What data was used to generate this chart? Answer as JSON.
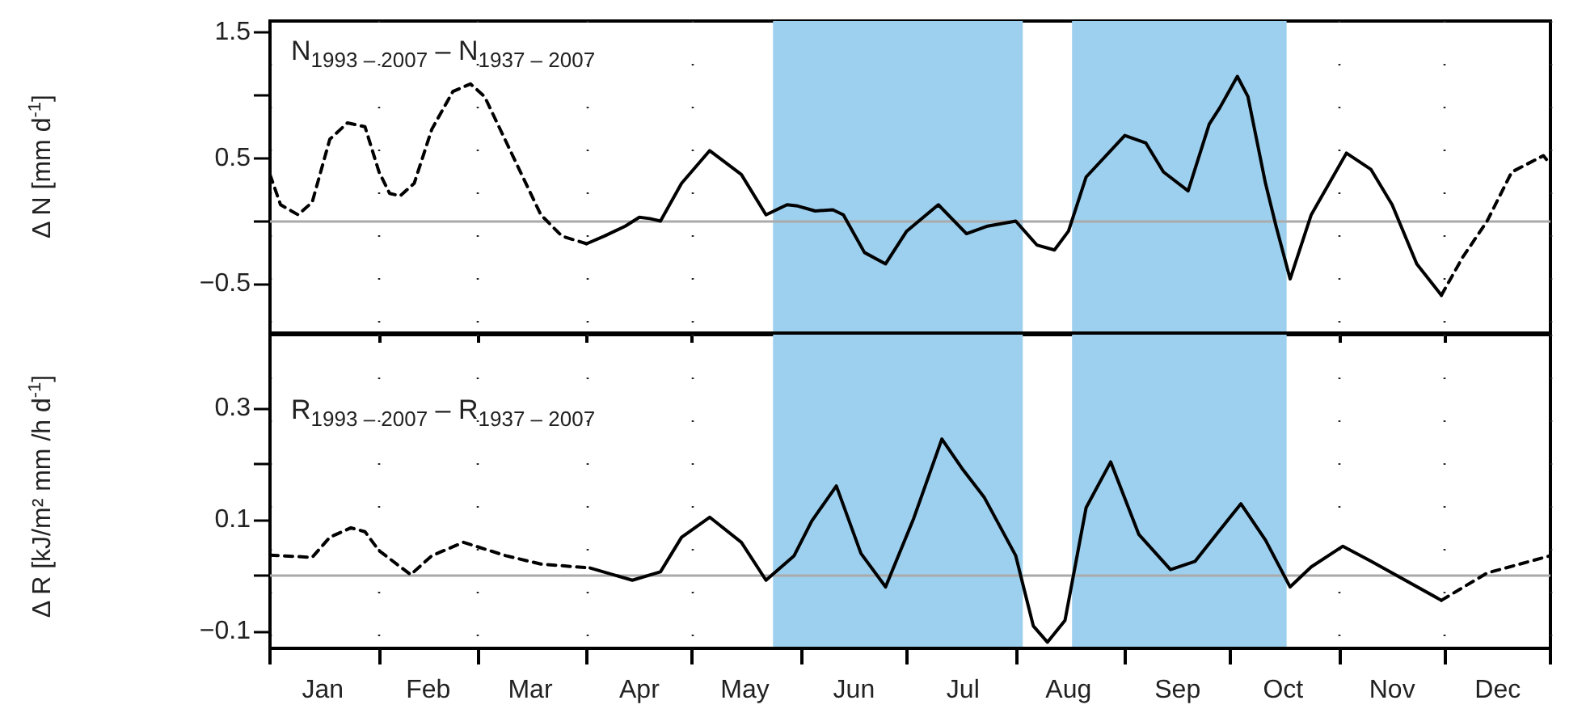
{
  "chart_data": [
    {
      "type": "line",
      "ylabel": "Δ N [mm d$^{-1}$]",
      "annotations": [
        "N$_{1993 – 2007}$ – N$_{1937 – 2007}$"
      ],
      "xlim": [
        "--01-01",
        "--12-31"
      ],
      "ylim": [
        -0.89,
        1.59
      ],
      "xticks": [
        {
          "value": "--01-01",
          "label": null
        },
        {
          "value": "--02-01",
          "label": null
        },
        {
          "value": "--03-01",
          "label": null
        },
        {
          "value": "--04-01",
          "label": null
        },
        {
          "value": "--05-01",
          "label": null
        },
        {
          "value": "--06-01",
          "label": null
        },
        {
          "value": "--07-01",
          "label": null
        },
        {
          "value": "--08-01",
          "label": null
        },
        {
          "value": "--09-01",
          "label": null
        },
        {
          "value": "--10-01",
          "label": null
        },
        {
          "value": "--11-01",
          "label": null
        },
        {
          "value": "--12-01",
          "label": null
        },
        {
          "value": "--12-31",
          "label": null
        }
      ],
      "yticks": [
        -0.5,
        {
          "value": 0,
          "label": null
        },
        0.5,
        {
          "value": 1,
          "label": null
        },
        1.5
      ],
      "tick_labels": "y",
      "grid": "x",
      "marker": "none",
      "ref_lines": [
        {
          "axis": "y",
          "value": 0,
          "color": "#aaaaaa"
        }
      ],
      "bands": [
        {
          "axis": "x",
          "from": "--05-24",
          "to": "--08-03",
          "color": "#9dd0ee"
        },
        {
          "axis": "x",
          "from": "--08-17",
          "to": "--10-17",
          "color": "#9dd0ee"
        }
      ],
      "series": [
        {
          "color": "#000000",
          "line_style": "dashed",
          "x": [
            "--01-01",
            "--01-04",
            "--01-09",
            "--01-13",
            "--01-18",
            "--01-23",
            "--01-28",
            "--02-01",
            "--02-04",
            "--02-07",
            "--02-11",
            "--02-16",
            "--02-22",
            "--02-27",
            "--03-03",
            "--03-11",
            "--03-19",
            "--03-25",
            "--04-01"
          ],
          "values": [
            0.37,
            0.13,
            0.05,
            0.15,
            0.65,
            0.78,
            0.75,
            0.39,
            0.22,
            0.2,
            0.3,
            0.73,
            1.03,
            1.09,
            0.99,
            0.52,
            0.05,
            -0.12,
            -0.18
          ]
        },
        {
          "color": "#000000",
          "line_style": "solid",
          "x": [
            "--04-01",
            "--04-06",
            "--04-12",
            "--04-16",
            "--04-19",
            "--04-22",
            "--04-28",
            "--05-06",
            "--05-15",
            "--05-22",
            "--05-28",
            "--05-31",
            "--06-05",
            "--06-10",
            "--06-13",
            "--06-19",
            "--06-25",
            "--07-01",
            "--07-10",
            "--07-18",
            "--07-24",
            "--08-01",
            "--08-07",
            "--08-12",
            "--08-16",
            "--08-21",
            "--09-01",
            "--09-07",
            "--09-12",
            "--09-19",
            "--09-25",
            "--09-28",
            "--10-03",
            "--10-06",
            "--10-11",
            "--10-14",
            "--10-18",
            "--10-24",
            "--11-03",
            "--11-10",
            "--11-16",
            "--11-23",
            "--11-30"
          ],
          "values": [
            -0.18,
            -0.12,
            -0.04,
            0.03,
            0.02,
            0.0,
            0.3,
            0.56,
            0.37,
            0.05,
            0.13,
            0.12,
            0.08,
            0.09,
            0.05,
            -0.25,
            -0.34,
            -0.08,
            0.13,
            -0.1,
            -0.04,
            0.0,
            -0.19,
            -0.23,
            -0.08,
            0.35,
            0.68,
            0.62,
            0.39,
            0.24,
            0.77,
            0.9,
            1.15,
            0.99,
            0.3,
            -0.04,
            -0.46,
            0.05,
            0.54,
            0.41,
            0.13,
            -0.34,
            -0.59
          ]
        },
        {
          "color": "#000000",
          "line_style": "dashed",
          "x": [
            "--11-30",
            "--12-06",
            "--12-13",
            "--12-20",
            "--12-29",
            "--12-31"
          ],
          "values": [
            -0.59,
            -0.29,
            0.0,
            0.39,
            0.52,
            0.45
          ]
        }
      ]
    },
    {
      "type": "line",
      "ylabel": "Δ R [kJ/m² mm /h d$^{-1}$]",
      "annotations": [
        "R$_{1993 – 2007}$ – R$_{1937 – 2007}$"
      ],
      "xlim": [
        "--01-01",
        "--12-31"
      ],
      "ylim": [
        -0.13,
        0.432
      ],
      "xticks": [
        {
          "value": "--01-01",
          "label": null
        },
        {
          "value": "--01-16",
          "label": "Jan"
        },
        {
          "value": "--02-01",
          "label": null
        },
        {
          "value": "--02-15",
          "label": "Feb"
        },
        {
          "value": "--03-01",
          "label": null
        },
        {
          "value": "--03-16",
          "label": "Mar"
        },
        {
          "value": "--04-01",
          "label": null
        },
        {
          "value": "--04-16",
          "label": "Apr"
        },
        {
          "value": "--05-01",
          "label": null
        },
        {
          "value": "--05-16",
          "label": "May"
        },
        {
          "value": "--06-01",
          "label": null
        },
        {
          "value": "--06-16",
          "label": "Jun"
        },
        {
          "value": "--07-01",
          "label": null
        },
        {
          "value": "--07-17",
          "label": "Jul"
        },
        {
          "value": "--08-01",
          "label": null
        },
        {
          "value": "--08-16",
          "label": "Aug"
        },
        {
          "value": "--09-01",
          "label": null
        },
        {
          "value": "--09-16",
          "label": "Sep"
        },
        {
          "value": "--10-01",
          "label": null
        },
        {
          "value": "--10-16",
          "label": "Oct"
        },
        {
          "value": "--11-01",
          "label": null
        },
        {
          "value": "--11-16",
          "label": "Nov"
        },
        {
          "value": "--12-01",
          "label": null
        },
        {
          "value": "--12-16",
          "label": "Dec"
        },
        {
          "value": "--12-31",
          "label": null
        }
      ],
      "yticks": [
        -0.1,
        {
          "value": 0,
          "label": null
        },
        0.1,
        {
          "value": 0.2,
          "label": null
        },
        0.3
      ],
      "grid": "x",
      "marker": "none",
      "ref_lines": [
        {
          "axis": "y",
          "value": 0,
          "color": "#aaaaaa"
        }
      ],
      "bands": [
        {
          "axis": "x",
          "from": "--05-24",
          "to": "--08-03",
          "color": "#9dd0ee"
        },
        {
          "axis": "x",
          "from": "--08-17",
          "to": "--10-17",
          "color": "#9dd0ee"
        }
      ],
      "series": [
        {
          "color": "#000000",
          "line_style": "dashed",
          "x": [
            "--01-01",
            "--01-13",
            "--01-18",
            "--01-24",
            "--01-28",
            "--02-01",
            "--02-10",
            "--02-16",
            "--02-25",
            "--03-09",
            "--03-19",
            "--04-02"
          ],
          "values": [
            0.037,
            0.033,
            0.069,
            0.086,
            0.079,
            0.045,
            0.002,
            0.036,
            0.06,
            0.036,
            0.021,
            0.014
          ]
        },
        {
          "color": "#000000",
          "line_style": "solid",
          "x": [
            "--04-02",
            "--04-14",
            "--04-22",
            "--04-28",
            "--05-06",
            "--05-15",
            "--05-22",
            "--05-30",
            "--06-04",
            "--06-11",
            "--06-18",
            "--06-25",
            "--07-03",
            "--07-11",
            "--07-17",
            "--07-23",
            "--08-01",
            "--08-06",
            "--08-10",
            "--08-15",
            "--08-21",
            "--08-28",
            "--09-05",
            "--09-14",
            "--09-21",
            "--09-27",
            "--10-04",
            "--10-11",
            "--10-18",
            "--10-24",
            "--11-02",
            "--11-10",
            "--11-30"
          ],
          "values": [
            0.014,
            -0.008,
            0.007,
            0.069,
            0.105,
            0.06,
            -0.008,
            0.036,
            0.098,
            0.161,
            0.04,
            -0.02,
            0.103,
            0.245,
            0.19,
            0.141,
            0.036,
            -0.09,
            -0.119,
            -0.08,
            0.122,
            0.204,
            0.074,
            0.011,
            0.026,
            0.074,
            0.129,
            0.064,
            -0.02,
            0.016,
            0.053,
            0.026,
            -0.044
          ]
        },
        {
          "color": "#000000",
          "line_style": "dashed",
          "x": [
            "--11-30",
            "--12-13",
            "--12-31"
          ],
          "values": [
            -0.044,
            0.005,
            0.036
          ]
        }
      ]
    }
  ]
}
